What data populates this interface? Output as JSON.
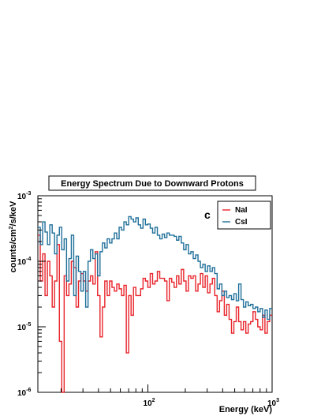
{
  "chart_data": {
    "type": "line",
    "title": "Energy Spectrum Due to Downward Protons",
    "xlabel": "Energy (keV)",
    "ylabel": "counts/cm²/s/keV",
    "ylabel_parts": [
      "counts/cm",
      "2",
      "/s/keV"
    ],
    "x_scale": "log",
    "y_scale": "log",
    "xlim": [
      13,
      1000
    ],
    "ylim": [
      1e-06,
      0.001
    ],
    "x_ticks": [
      {
        "value": 100,
        "base": "10",
        "exp": "2"
      },
      {
        "value": 1000,
        "base": "10",
        "exp": "3"
      }
    ],
    "y_ticks": [
      {
        "value": 1e-06,
        "base": "10",
        "exp": "-6"
      },
      {
        "value": 1e-05,
        "base": "10",
        "exp": "-5"
      },
      {
        "value": 0.0001,
        "base": "10",
        "exp": "-4"
      },
      {
        "value": 0.001,
        "base": "10",
        "exp": "-3"
      }
    ],
    "annotation": "c",
    "legend_position": "top-right",
    "series": [
      {
        "name": "NaI",
        "color": "#e8232a",
        "values": [
          0.00025,
          5e-05,
          0.00013,
          3e-05,
          0.0001,
          6e-05,
          2e-05,
          5e-05,
          0.00018,
          6e-06,
          8e-07,
          6e-05,
          3e-05,
          4.5e-05,
          0.0001,
          8e-05,
          2e-05,
          5e-05,
          6.5e-05,
          5e-05,
          3.5e-05,
          5e-05,
          6e-05,
          4.5e-05,
          0.00014,
          3e-05,
          7e-06,
          2e-05,
          5e-05,
          3e-05,
          5e-05,
          4e-05,
          3.5e-05,
          4.5e-05,
          3.8e-05,
          3e-05,
          4.3e-05,
          4e-06,
          3e-05,
          1.5e-05,
          4e-05,
          3e-05,
          3e-05,
          3.8e-05,
          5.5e-05,
          5e-05,
          4e-05,
          6.5e-05,
          4.5e-05,
          5e-05,
          7e-05,
          5.5e-05,
          5.5e-05,
          5e-05,
          2.5e-05,
          5.5e-05,
          4.8e-05,
          4e-05,
          6e-05,
          4.5e-05,
          7.5e-05,
          5e-05,
          3.5e-05,
          6e-05,
          5.5e-05,
          6e-05,
          3.5e-05,
          4.5e-05,
          6.5e-05,
          4e-05,
          6e-05,
          3.3e-05,
          4.5e-05,
          5.5e-05,
          3e-05,
          1.7e-05,
          2.5e-05,
          3.5e-05,
          1.5e-05,
          2.2e-05,
          1.3e-05,
          8e-06,
          1.2e-05,
          2e-05,
          1.2e-05,
          9e-06,
          1.2e-05,
          8e-06,
          1.1e-05,
          1.2e-05,
          1.7e-05,
          1.3e-05,
          1e-05,
          9e-06,
          1.5e-05,
          8e-06,
          1.2e-05,
          1.5e-05
        ]
      },
      {
        "name": "CsI",
        "color": "#1f6f9a",
        "values": [
          0.00033,
          0.00018,
          0.0004,
          0.00028,
          0.00018,
          0.00036,
          0.00027,
          0.00013,
          0.00025,
          0.00033,
          0.00015,
          0.00022,
          5e-05,
          0.00011,
          0.00025,
          3e-05,
          0.00012,
          7e-05,
          3.5e-05,
          7e-05,
          2e-05,
          0.0001,
          0.00015,
          0.00011,
          0.00013,
          6e-05,
          0.00014,
          0.00019,
          0.00016,
          0.00022,
          0.00019,
          0.00022,
          0.00027,
          0.00022,
          0.00033,
          0.0003,
          0.0004,
          0.00036,
          0.00048,
          0.00044,
          0.0004,
          0.00046,
          0.00036,
          0.00032,
          0.00044,
          0.00036,
          0.00037,
          0.00032,
          0.00027,
          0.00033,
          0.00025,
          0.00022,
          0.00026,
          0.00023,
          0.00027,
          0.00025,
          0.00025,
          0.00024,
          0.00021,
          0.00024,
          0.00019,
          0.00015,
          0.00018,
          0.00013,
          0.00014,
          0.00011,
          0.000125,
          0.0001,
          8e-05,
          9e-05,
          7e-05,
          8.5e-05,
          7e-05,
          8e-05,
          6.5e-05,
          3.8e-05,
          4.5e-05,
          3e-05,
          3.5e-05,
          2.8e-05,
          3e-05,
          2.6e-05,
          3.2e-05,
          2.5e-05,
          4.5e-05,
          2.6e-05,
          2e-05,
          2.4e-05,
          2.1e-05,
          2.2e-05,
          1.9e-05,
          2e-05,
          1.7e-05,
          1.9e-05,
          1.4e-05,
          1.8e-05,
          1.3e-05,
          1.9e-05
        ]
      }
    ]
  }
}
